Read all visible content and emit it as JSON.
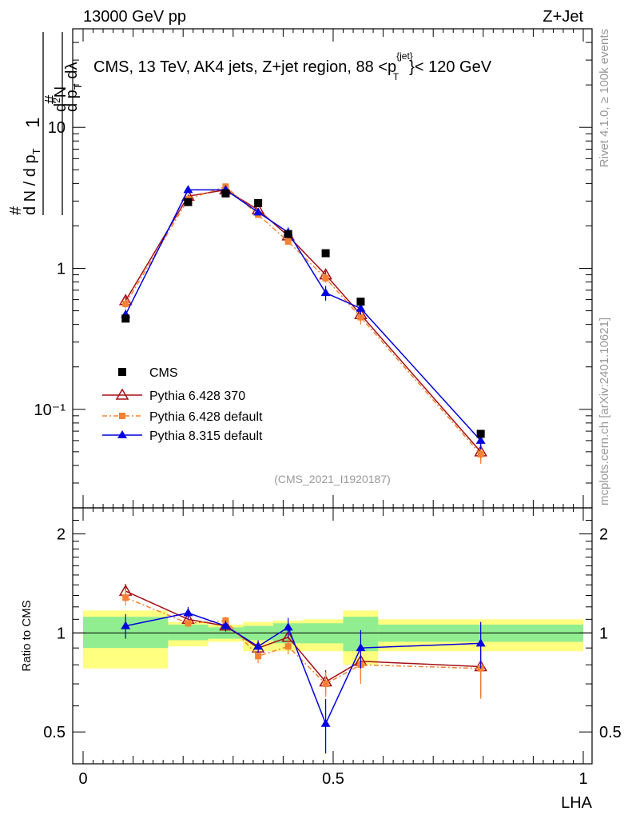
{
  "header": {
    "left": "13000 GeV pp",
    "right": "Z+Jet"
  },
  "side": {
    "rivet": "Rivet 4.1.0, ≥ 100k events",
    "mcplots": "mcplots.cern.ch [arXiv:2401.10621]"
  },
  "chart_data": {
    "type": "scatter",
    "title": "CMS, 13 TeV, AK4 jets, Z+jet region, 88 < p_T^{jet} < 120 GeV",
    "title_main": "CMS, 13 TeV, AK4 jets, Z+jet region, 88 <p",
    "title_sup": "{jet}",
    "title_sub": "T",
    "title_tail": "}< 120 GeV",
    "analysis_id": "(CMS_2021_I1920187)",
    "xlabel": "LHA",
    "ylabel": "1/(dN/dpT) d²N/(dpT dλ)",
    "ratio_ylabel": "Ratio to CMS",
    "xlim": [
      0,
      1
    ],
    "ylim": [
      0.02,
      50
    ],
    "yscale": "log",
    "ratio_ylim": [
      0.4,
      2.4
    ],
    "x_ticks": [
      "0",
      "0.5",
      "1"
    ],
    "y_ticks": [
      "10⁻¹",
      "1",
      "10"
    ],
    "ratio_ticks": [
      "0.5",
      "1",
      "2"
    ],
    "bin_edges": [
      0.0,
      0.17,
      0.25,
      0.32,
      0.38,
      0.44,
      0.52,
      0.59,
      1.0
    ],
    "x": [
      0.085,
      0.21,
      0.285,
      0.35,
      0.41,
      0.485,
      0.555,
      0.795
    ],
    "legend_position": "lower-left",
    "series": [
      {
        "name": "CMS",
        "color": "#000000",
        "values": [
          0.44,
          2.95,
          3.4,
          2.9,
          1.75,
          1.28,
          0.58,
          0.067
        ],
        "band_inner": [
          [
            0.9,
            1.12
          ],
          [
            0.95,
            1.06
          ],
          [
            0.96,
            1.04
          ],
          [
            0.95,
            1.05
          ],
          [
            0.93,
            1.07
          ],
          [
            0.93,
            1.07
          ],
          [
            0.88,
            1.12
          ],
          [
            0.94,
            1.06
          ]
        ],
        "band_outer": [
          [
            0.78,
            1.17
          ],
          [
            0.91,
            1.08
          ],
          [
            0.94,
            1.06
          ],
          [
            0.88,
            1.08
          ],
          [
            0.88,
            1.09
          ],
          [
            0.88,
            1.1
          ],
          [
            0.8,
            1.17
          ],
          [
            0.88,
            1.1
          ]
        ]
      },
      {
        "name": "Pythia 6.428 370",
        "color": "#a50f15",
        "values": [
          0.59,
          3.25,
          3.6,
          2.6,
          1.7,
          0.9,
          0.47,
          0.05
        ],
        "errors": [
          0.04,
          0.1,
          0.1,
          0.08,
          0.07,
          0.06,
          0.05,
          0.007
        ],
        "ratio": [
          1.34,
          1.1,
          1.05,
          0.9,
          0.97,
          0.71,
          0.82,
          0.79
        ],
        "ratio_err": [
          0.07,
          0.03,
          0.03,
          0.04,
          0.05,
          0.06,
          0.1,
          0.15
        ]
      },
      {
        "name": "Pythia 6.428 default",
        "color": "#f58231",
        "values": [
          0.56,
          3.1,
          3.8,
          2.4,
          1.55,
          0.85,
          0.45,
          0.048
        ],
        "errors": [
          0.04,
          0.1,
          0.1,
          0.08,
          0.07,
          0.06,
          0.05,
          0.007
        ],
        "ratio": [
          1.28,
          1.07,
          1.09,
          0.85,
          0.91,
          0.7,
          0.8,
          0.78
        ],
        "ratio_err": [
          0.07,
          0.03,
          0.03,
          0.04,
          0.05,
          0.06,
          0.1,
          0.15
        ]
      },
      {
        "name": "Pythia 8.315 default",
        "color": "#0000e0",
        "values": [
          0.47,
          3.6,
          3.6,
          2.5,
          1.8,
          0.67,
          0.52,
          0.06
        ],
        "errors": [
          0.04,
          0.1,
          0.1,
          0.08,
          0.15,
          0.08,
          0.05,
          0.008
        ],
        "ratio": [
          1.05,
          1.15,
          1.05,
          0.91,
          1.04,
          0.53,
          0.9,
          0.93
        ],
        "ratio_err": [
          0.09,
          0.05,
          0.04,
          0.04,
          0.07,
          0.1,
          0.12,
          0.15
        ]
      }
    ]
  }
}
